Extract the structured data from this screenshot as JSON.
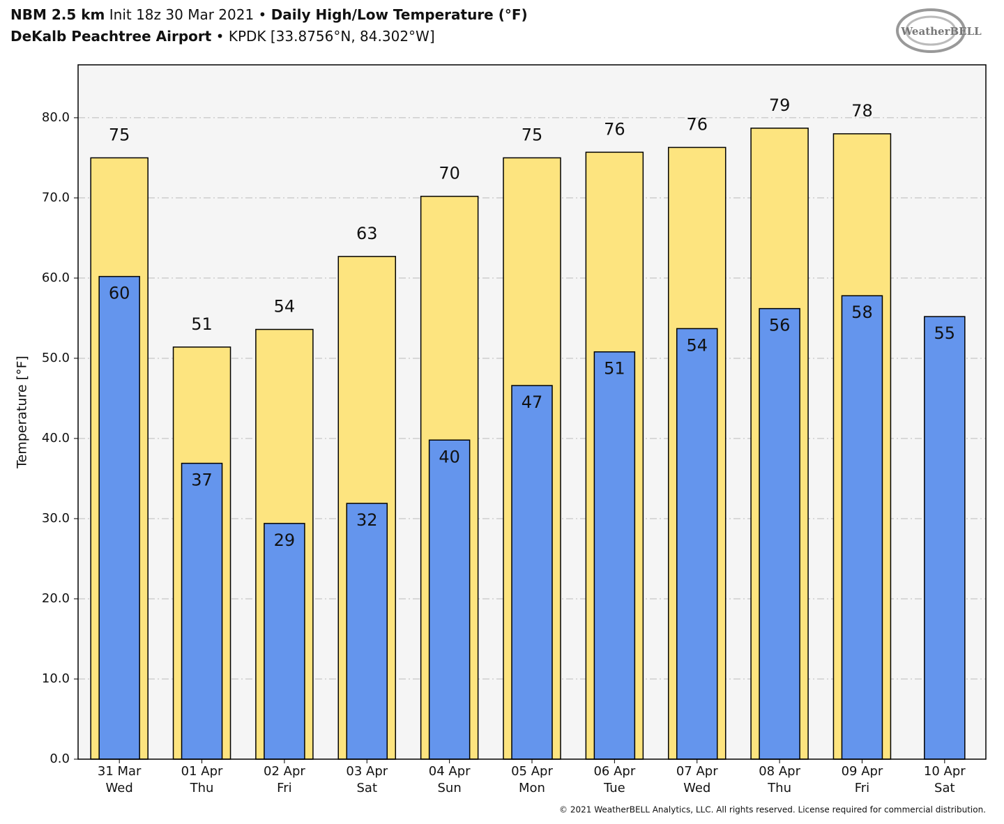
{
  "chart_data": {
    "type": "bar",
    "title_parts": [
      "NBM 2.5 km",
      "Init 18z 30 Mar 2021",
      "Daily High/Low Temperature (°F)"
    ],
    "subtitle_parts": [
      "DeKalb Peachtree Airport",
      "KPDK [33.8756°N, 84.302°W]"
    ],
    "separator": "•",
    "logo": "WeatherBELL",
    "footer": "© 2021 WeatherBELL Analytics, LLC. All rights reserved. License required for commercial distribution.",
    "ylabel": "Temperature [°F]",
    "categories": [
      "31 Mar",
      "01 Apr",
      "02 Apr",
      "03 Apr",
      "04 Apr",
      "05 Apr",
      "06 Apr",
      "07 Apr",
      "08 Apr",
      "09 Apr",
      "10 Apr"
    ],
    "weekdays": [
      "Wed",
      "Thu",
      "Fri",
      "Sat",
      "Sun",
      "Mon",
      "Tue",
      "Wed",
      "Thu",
      "Fri",
      "Sat"
    ],
    "series": [
      {
        "color": "#fde47f",
        "values": [
          75.0,
          51.4,
          53.6,
          62.7,
          70.2,
          75.0,
          75.7,
          76.3,
          78.7,
          78.0,
          null
        ],
        "value_labels": [
          "75",
          "51",
          "54",
          "63",
          "70",
          "75",
          "76",
          "76",
          "79",
          "78",
          null
        ]
      },
      {
        "color": "#6495ed",
        "values": [
          60.2,
          36.9,
          29.4,
          31.9,
          39.8,
          46.6,
          50.8,
          53.7,
          56.2,
          57.8,
          55.2
        ],
        "value_labels": [
          "60",
          "37",
          "29",
          "32",
          "40",
          "47",
          "51",
          "54",
          "56",
          "58",
          "55"
        ]
      }
    ],
    "ylim": [
      0,
      86.6
    ],
    "yticks": [
      {
        "value": 0,
        "label": "0.0"
      },
      {
        "value": 10,
        "label": "10.0"
      },
      {
        "value": 20,
        "label": "20.0"
      },
      {
        "value": 30,
        "label": "30.0"
      },
      {
        "value": 40,
        "label": "40.0"
      },
      {
        "value": 50,
        "label": "50.0"
      },
      {
        "value": 60,
        "label": "60.0"
      },
      {
        "value": 70,
        "label": "70.0"
      },
      {
        "value": 80,
        "label": "80.0"
      }
    ],
    "grid": true
  }
}
